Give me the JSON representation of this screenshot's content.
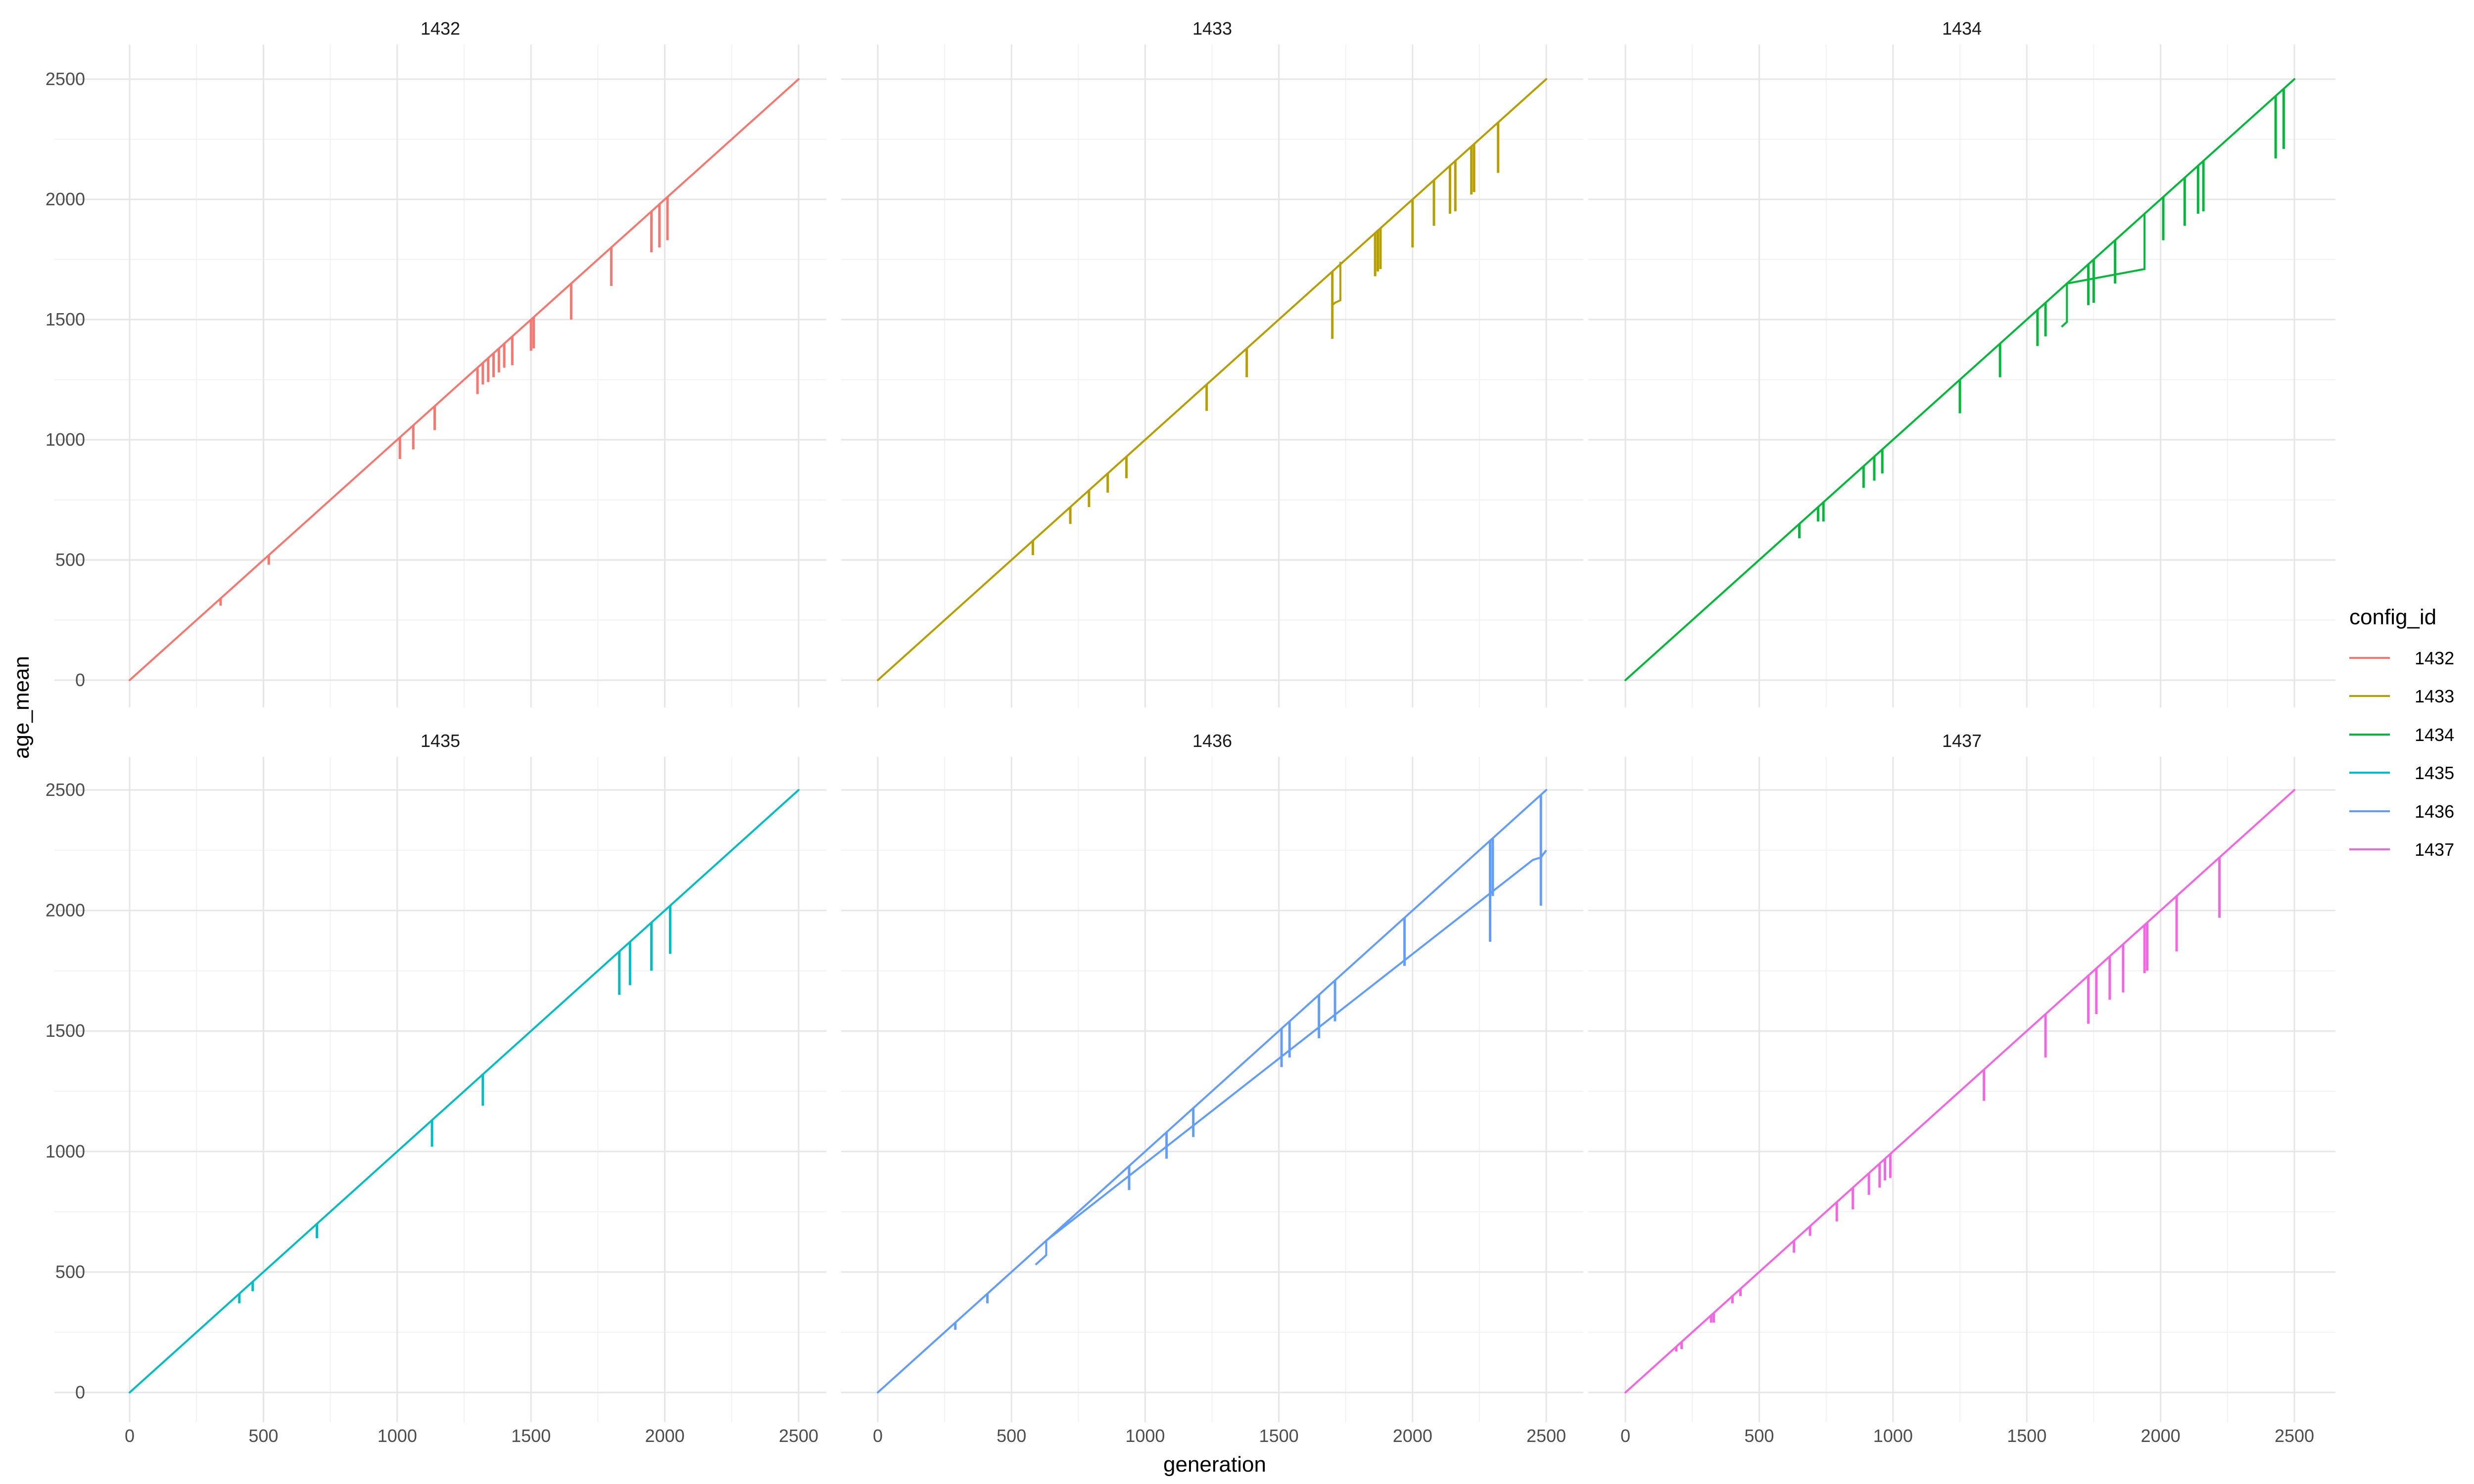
{
  "chart_data": {
    "type": "line",
    "facet_by": "config_id",
    "xlabel": "generation",
    "ylabel": "age_mean",
    "xlim": [
      0,
      2500
    ],
    "ylim": [
      0,
      2500
    ],
    "x_ticks": [
      0,
      500,
      1000,
      1500,
      2000,
      2500
    ],
    "y_ticks": [
      0,
      500,
      1000,
      1500,
      2000,
      2500
    ],
    "grid": true,
    "legend": {
      "title": "config_id",
      "position": "right"
    },
    "series": [
      {
        "name": "1432",
        "color": "#F8766D",
        "x_range": [
          0,
          2500
        ],
        "dips": [
          [
            340,
            310
          ],
          [
            520,
            480
          ],
          [
            1010,
            920
          ],
          [
            1060,
            960
          ],
          [
            1140,
            1040
          ],
          [
            1300,
            1190
          ],
          [
            1320,
            1230
          ],
          [
            1340,
            1240
          ],
          [
            1360,
            1260
          ],
          [
            1380,
            1280
          ],
          [
            1400,
            1300
          ],
          [
            1430,
            1310
          ],
          [
            1500,
            1370
          ],
          [
            1510,
            1380
          ],
          [
            1650,
            1500
          ],
          [
            1800,
            1640
          ],
          [
            1950,
            1780
          ],
          [
            1980,
            1800
          ],
          [
            2010,
            1830
          ]
        ],
        "steps": []
      },
      {
        "name": "1433",
        "color": "#B79F00",
        "x_range": [
          0,
          2500
        ],
        "dips": [
          [
            580,
            520
          ],
          [
            720,
            650
          ],
          [
            790,
            720
          ],
          [
            860,
            780
          ],
          [
            930,
            840
          ],
          [
            1230,
            1120
          ],
          [
            1380,
            1260
          ],
          [
            1700,
            1420
          ],
          [
            1860,
            1680
          ],
          [
            1870,
            1700
          ],
          [
            1880,
            1710
          ],
          [
            2000,
            1800
          ],
          [
            2080,
            1890
          ],
          [
            2140,
            1940
          ],
          [
            2160,
            1950
          ],
          [
            2220,
            2020
          ],
          [
            2230,
            2030
          ],
          [
            2320,
            2110
          ]
        ],
        "steps": [
          [
            1700,
            1560
          ],
          [
            1710,
            1570
          ],
          [
            1730,
            1580
          ],
          [
            1730,
            1740
          ]
        ]
      },
      {
        "name": "1434",
        "color": "#00BA38",
        "x_range": [
          0,
          2500
        ],
        "dips": [
          [
            650,
            590
          ],
          [
            720,
            660
          ],
          [
            740,
            660
          ],
          [
            890,
            800
          ],
          [
            930,
            830
          ],
          [
            960,
            860
          ],
          [
            1250,
            1110
          ],
          [
            1400,
            1260
          ],
          [
            1540,
            1390
          ],
          [
            1570,
            1430
          ],
          [
            1730,
            1560
          ],
          [
            1750,
            1570
          ],
          [
            1830,
            1650
          ],
          [
            2010,
            1830
          ],
          [
            2090,
            1890
          ],
          [
            2140,
            1940
          ],
          [
            2160,
            1950
          ],
          [
            2430,
            2170
          ],
          [
            2460,
            2210
          ]
        ],
        "steps": [
          [
            1630,
            1470
          ],
          [
            1650,
            1490
          ],
          [
            1650,
            1650
          ],
          [
            1940,
            1710
          ],
          [
            1940,
            1710
          ],
          [
            1940,
            1940
          ]
        ]
      },
      {
        "name": "1435",
        "color": "#00BFC4",
        "x_range": [
          0,
          2500
        ],
        "dips": [
          [
            410,
            370
          ],
          [
            460,
            420
          ],
          [
            700,
            640
          ],
          [
            1130,
            1020
          ],
          [
            1320,
            1190
          ],
          [
            1830,
            1650
          ],
          [
            1870,
            1690
          ],
          [
            1950,
            1750
          ],
          [
            2020,
            1820
          ]
        ],
        "steps": []
      },
      {
        "name": "1436",
        "color": "#619CFF",
        "x_range": [
          0,
          2500
        ],
        "dips": [
          [
            290,
            260
          ],
          [
            410,
            370
          ],
          [
            940,
            840
          ],
          [
            1080,
            970
          ],
          [
            1180,
            1060
          ],
          [
            1510,
            1350
          ],
          [
            1540,
            1390
          ],
          [
            1650,
            1470
          ],
          [
            1710,
            1540
          ],
          [
            1970,
            1770
          ],
          [
            2290,
            1870
          ],
          [
            2300,
            2060
          ],
          [
            2480,
            2020
          ]
        ],
        "steps": [
          [
            590,
            530
          ],
          [
            630,
            570
          ],
          [
            630,
            630
          ],
          [
            2450,
            2210
          ],
          [
            2480,
            2220
          ],
          [
            2500,
            2250
          ]
        ]
      },
      {
        "name": "1437",
        "color": "#F564E3",
        "x_range": [
          0,
          2500
        ],
        "dips": [
          [
            190,
            170
          ],
          [
            210,
            180
          ],
          [
            320,
            290
          ],
          [
            330,
            290
          ],
          [
            400,
            370
          ],
          [
            430,
            400
          ],
          [
            630,
            580
          ],
          [
            690,
            650
          ],
          [
            790,
            710
          ],
          [
            850,
            760
          ],
          [
            910,
            820
          ],
          [
            950,
            850
          ],
          [
            970,
            880
          ],
          [
            990,
            890
          ],
          [
            1340,
            1210
          ],
          [
            1570,
            1390
          ],
          [
            1730,
            1530
          ],
          [
            1760,
            1570
          ],
          [
            1810,
            1630
          ],
          [
            1860,
            1660
          ],
          [
            1940,
            1740
          ],
          [
            1950,
            1750
          ],
          [
            2060,
            1830
          ],
          [
            2220,
            1970
          ]
        ],
        "steps": []
      }
    ]
  }
}
